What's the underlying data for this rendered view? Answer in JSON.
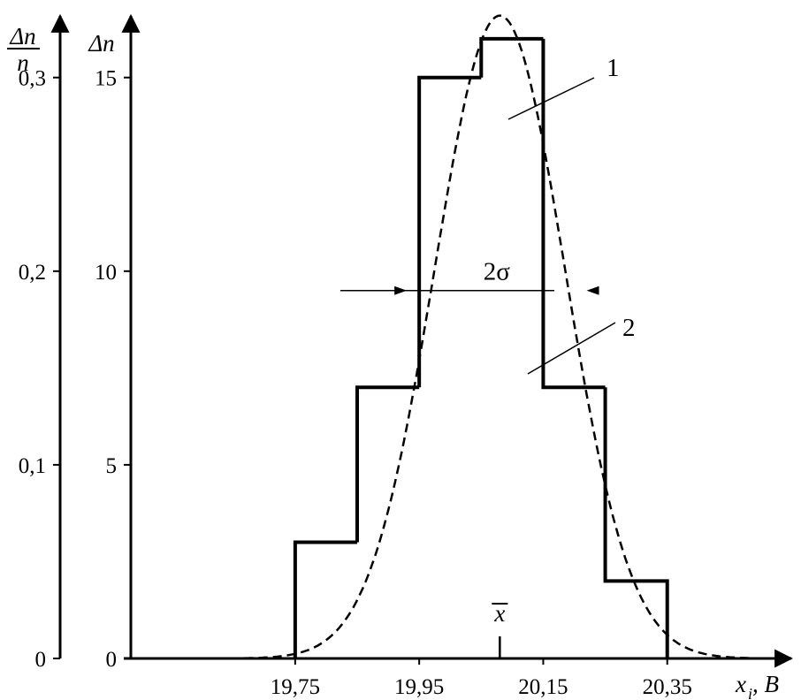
{
  "chart_data": {
    "type": "bar",
    "xlabel_var": "x",
    "xlabel_sub": "i",
    "xlabel_unit": ", B",
    "ylabel_left_num": "Δn",
    "ylabel_left_den": "n",
    "ylabel_right": "Δn",
    "xticks": [
      "19,75",
      "19,95",
      "20,15",
      "20,35"
    ],
    "xtick_values": [
      19.75,
      19.95,
      20.15,
      20.35
    ],
    "yticks_count": [
      "0",
      "5",
      "10",
      "15"
    ],
    "ytick_count_values": [
      0,
      5,
      10,
      15
    ],
    "yticks_rel": [
      "0",
      "0,1",
      "0,2",
      "0,3"
    ],
    "ytick_rel_values": [
      0,
      0.1,
      0.2,
      0.3
    ],
    "xlim": [
      19.485,
      20.55
    ],
    "ylim": [
      0,
      16.5
    ],
    "histogram": {
      "name": "1",
      "bin_edges": [
        19.75,
        19.85,
        19.95,
        20.05,
        20.15,
        20.25,
        20.35
      ],
      "counts": [
        3,
        7,
        15,
        16,
        7,
        2
      ]
    },
    "curve": {
      "name": "2",
      "type": "normal",
      "mean": 20.08,
      "sigma": 0.105,
      "peak": 16.6
    },
    "mean_label": "x",
    "mean_value": 20.08,
    "sigma_label": "2σ",
    "sigma_bounds": [
      19.93,
      20.22
    ],
    "sigma_level": 9.5
  }
}
